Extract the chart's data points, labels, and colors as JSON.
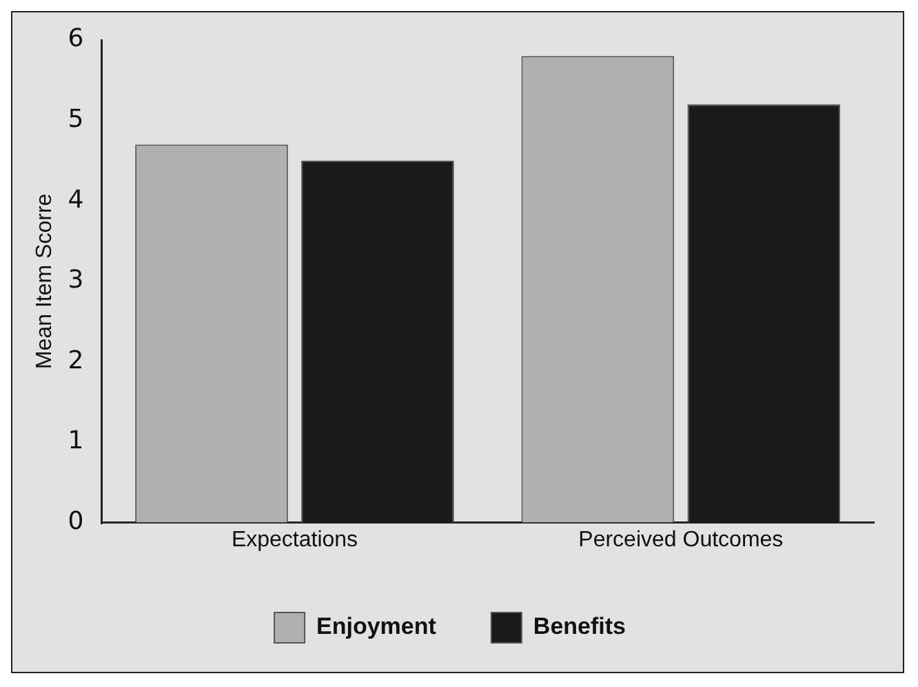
{
  "chart_data": {
    "type": "bar",
    "ylabel": "Mean Item Scorre",
    "categories": [
      "Expectations",
      "Perceived Outcomes"
    ],
    "series": [
      {
        "name": "Enjoyment",
        "color": "#b0b0b0",
        "values": [
          4.7,
          5.8
        ]
      },
      {
        "name": "Benefits",
        "color": "#1a1a1a",
        "values": [
          4.5,
          5.2
        ]
      }
    ],
    "ylim": [
      0,
      6
    ],
    "yticks": [
      0,
      1,
      2,
      3,
      4,
      5,
      6
    ],
    "grid": false,
    "legend": "bottom"
  }
}
